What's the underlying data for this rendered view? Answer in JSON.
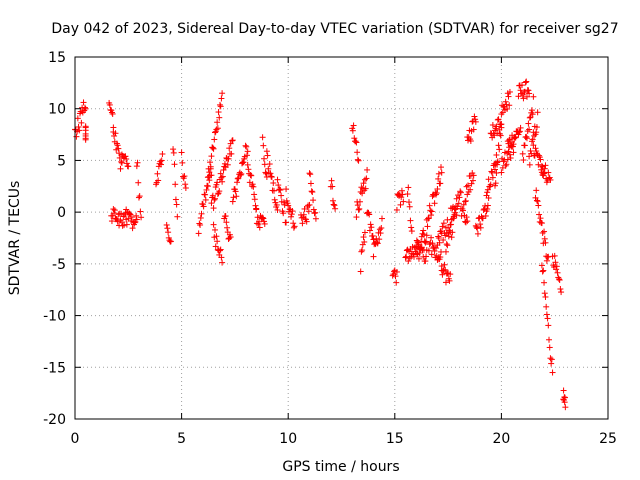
{
  "chart_data": {
    "type": "scatter",
    "title": "Day 042 of 2023, Sidereal Day-to-day VTEC variation (SDTVAR) for receiver sg27",
    "xlabel": "GPS time / hours",
    "ylabel": "SDTVAR / TECUs",
    "xlim": [
      0,
      25
    ],
    "ylim": [
      -20,
      15
    ],
    "grid": true,
    "marker": "+",
    "color": "#ff0000",
    "x_ticks": [
      "0",
      "5",
      "10",
      "15",
      "20",
      "25"
    ],
    "y_ticks": [
      "15",
      "10",
      "5",
      "0",
      "-5",
      "-10",
      "-15",
      "-20"
    ],
    "segments": [
      [
        0.0,
        0.5,
        7.5,
        10.5
      ],
      [
        0.5,
        0.5,
        8.0,
        7.5
      ],
      [
        1.6,
        1.8,
        11.0,
        8.5
      ],
      [
        1.8,
        2.2,
        8.0,
        4.0
      ],
      [
        2.2,
        2.5,
        5.5,
        5.0
      ],
      [
        1.7,
        2.4,
        -0.3,
        -0.8
      ],
      [
        2.4,
        2.9,
        -0.5,
        -1.0
      ],
      [
        2.9,
        3.1,
        5.0,
        -1.0
      ],
      [
        3.8,
        4.1,
        2.5,
        6.0
      ],
      [
        4.3,
        4.5,
        -1.5,
        -2.5
      ],
      [
        4.6,
        4.8,
        6.0,
        0.0
      ],
      [
        5.0,
        5.2,
        5.0,
        2.0
      ],
      [
        5.8,
        6.4,
        -1.5,
        4.0
      ],
      [
        6.2,
        6.9,
        3.0,
        11.0
      ],
      [
        6.4,
        7.4,
        0.5,
        6.5
      ],
      [
        6.5,
        6.9,
        -2.0,
        -4.5
      ],
      [
        7.0,
        7.3,
        -0.5,
        -3.0
      ],
      [
        7.4,
        8.1,
        1.0,
        6.5
      ],
      [
        8.1,
        8.5,
        4.5,
        0.5
      ],
      [
        8.5,
        8.9,
        -0.5,
        -1.5
      ],
      [
        8.8,
        9.0,
        7.0,
        3.0
      ],
      [
        9.0,
        9.5,
        5.5,
        0.5
      ],
      [
        9.5,
        9.9,
        2.5,
        -0.5
      ],
      [
        9.9,
        10.3,
        2.0,
        -1.5
      ],
      [
        10.6,
        11.0,
        -0.5,
        0.0
      ],
      [
        11.0,
        11.3,
        4.0,
        -0.5
      ],
      [
        12.0,
        12.2,
        3.0,
        0.5
      ],
      [
        13.0,
        13.3,
        8.5,
        5.0
      ],
      [
        13.2,
        13.7,
        0.0,
        3.5
      ],
      [
        13.4,
        13.6,
        -5.0,
        -2.0
      ],
      [
        13.7,
        14.0,
        0.0,
        -3.0
      ],
      [
        14.0,
        14.4,
        -4.0,
        -1.0
      ],
      [
        14.9,
        15.1,
        -6.0,
        -6.5
      ],
      [
        15.1,
        15.4,
        1.0,
        1.5
      ],
      [
        15.5,
        16.5,
        -4.0,
        -4.0
      ],
      [
        15.6,
        15.8,
        2.5,
        -2.0
      ],
      [
        16.0,
        16.5,
        -3.5,
        -2.0
      ],
      [
        16.5,
        17.2,
        -1.0,
        4.0
      ],
      [
        16.6,
        17.2,
        -3.0,
        -4.5
      ],
      [
        17.0,
        17.5,
        -3.0,
        -1.0
      ],
      [
        17.2,
        17.6,
        -5.5,
        -6.5
      ],
      [
        17.4,
        17.9,
        -3.5,
        0.0
      ],
      [
        17.6,
        18.1,
        -0.5,
        1.5
      ],
      [
        18.1,
        18.4,
        0.5,
        -0.5
      ],
      [
        18.3,
        18.7,
        1.5,
        4.0
      ],
      [
        18.4,
        18.8,
        6.5,
        9.0
      ],
      [
        18.8,
        19.4,
        -2.0,
        1.0
      ],
      [
        19.3,
        19.8,
        2.0,
        5.0
      ],
      [
        19.5,
        20.0,
        7.5,
        9.0
      ],
      [
        19.7,
        20.0,
        3.0,
        8.0
      ],
      [
        20.0,
        20.6,
        4.5,
        6.5
      ],
      [
        20.0,
        20.4,
        10.0,
        11.0
      ],
      [
        20.3,
        20.9,
        6.5,
        8.0
      ],
      [
        20.8,
        21.3,
        11.5,
        12.0
      ],
      [
        21.0,
        21.5,
        5.0,
        10.5
      ],
      [
        21.3,
        21.7,
        5.0,
        9.0
      ],
      [
        21.5,
        22.0,
        6.0,
        4.0
      ],
      [
        21.9,
        22.3,
        4.5,
        3.0
      ],
      [
        21.6,
        22.2,
        2.0,
        -5.0
      ],
      [
        21.9,
        22.4,
        -5.0,
        -15.5
      ],
      [
        22.4,
        22.8,
        -4.0,
        -8.0
      ],
      [
        22.9,
        23.0,
        -17.5,
        -18.8
      ]
    ]
  }
}
